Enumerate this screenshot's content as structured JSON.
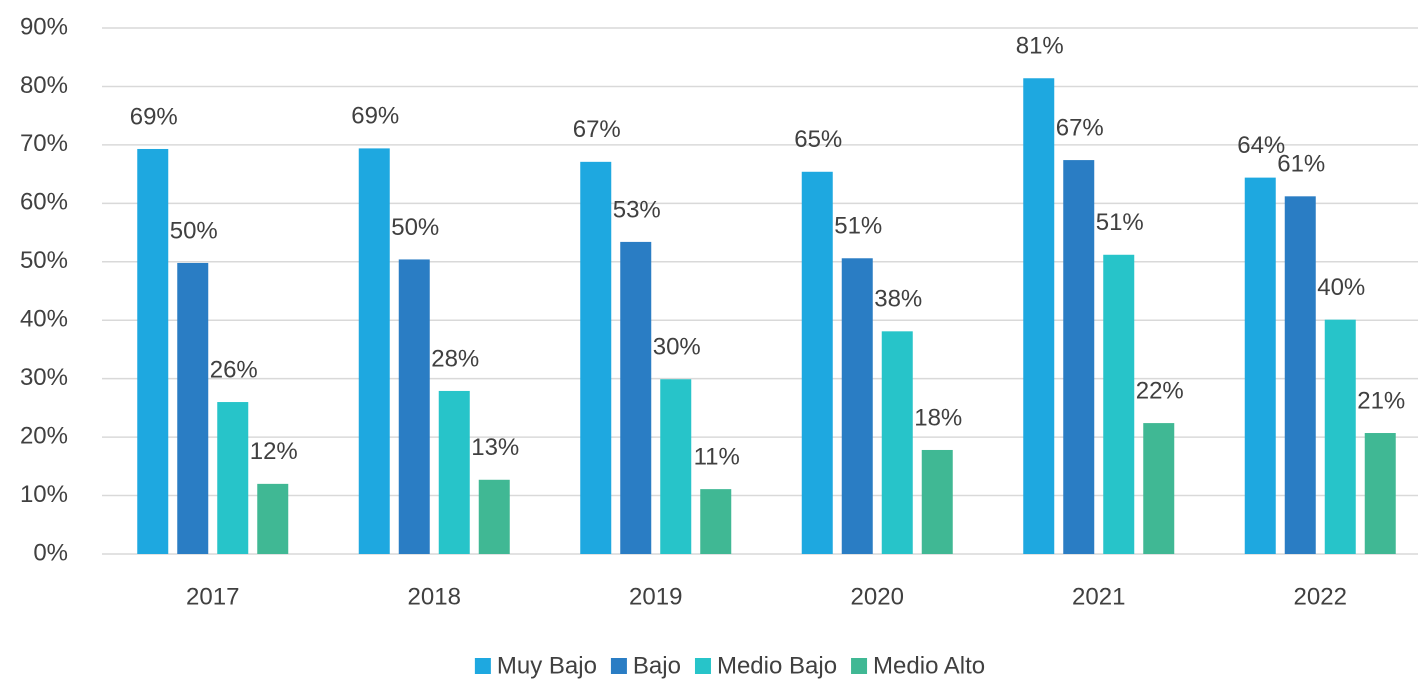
{
  "chart_data": {
    "type": "bar",
    "categories": [
      "2017",
      "2018",
      "2019",
      "2020",
      "2021",
      "2022"
    ],
    "series": [
      {
        "name": "Muy Bajo",
        "color": "#1ea8e0",
        "values": [
          69.3,
          69.4,
          67.1,
          65.4,
          81.4,
          64.4
        ],
        "value_labels": [
          "69%",
          "69%",
          "67%",
          "65%",
          "81%",
          "64%"
        ]
      },
      {
        "name": "Bajo",
        "color": "#2a7dc4",
        "values": [
          49.8,
          50.4,
          53.4,
          50.6,
          67.4,
          61.2
        ],
        "value_labels": [
          "50%",
          "50%",
          "53%",
          "51%",
          "67%",
          "61%"
        ]
      },
      {
        "name": "Medio Bajo",
        "color": "#27c4c9",
        "values": [
          26.0,
          27.9,
          29.9,
          38.1,
          51.2,
          40.1
        ],
        "value_labels": [
          "26%",
          "28%",
          "30%",
          "38%",
          "51%",
          "40%"
        ]
      },
      {
        "name": "Medio Alto",
        "color": "#40b894",
        "values": [
          12.0,
          12.7,
          11.1,
          17.8,
          22.4,
          20.7
        ],
        "value_labels": [
          "12%",
          "13%",
          "11%",
          "18%",
          "22%",
          "21%"
        ]
      }
    ],
    "ylim": [
      0,
      90
    ],
    "yticks": [
      {
        "value": 0,
        "label": "0%"
      },
      {
        "value": 10,
        "label": "10%"
      },
      {
        "value": 20,
        "label": "20%"
      },
      {
        "value": 30,
        "label": "30%"
      },
      {
        "value": 40,
        "label": "40%"
      },
      {
        "value": 50,
        "label": "50%"
      },
      {
        "value": 60,
        "label": "60%"
      },
      {
        "value": 70,
        "label": "70%"
      },
      {
        "value": 80,
        "label": "80%"
      },
      {
        "value": 90,
        "label": "90%"
      }
    ],
    "grid": true,
    "legend": "bottom"
  }
}
